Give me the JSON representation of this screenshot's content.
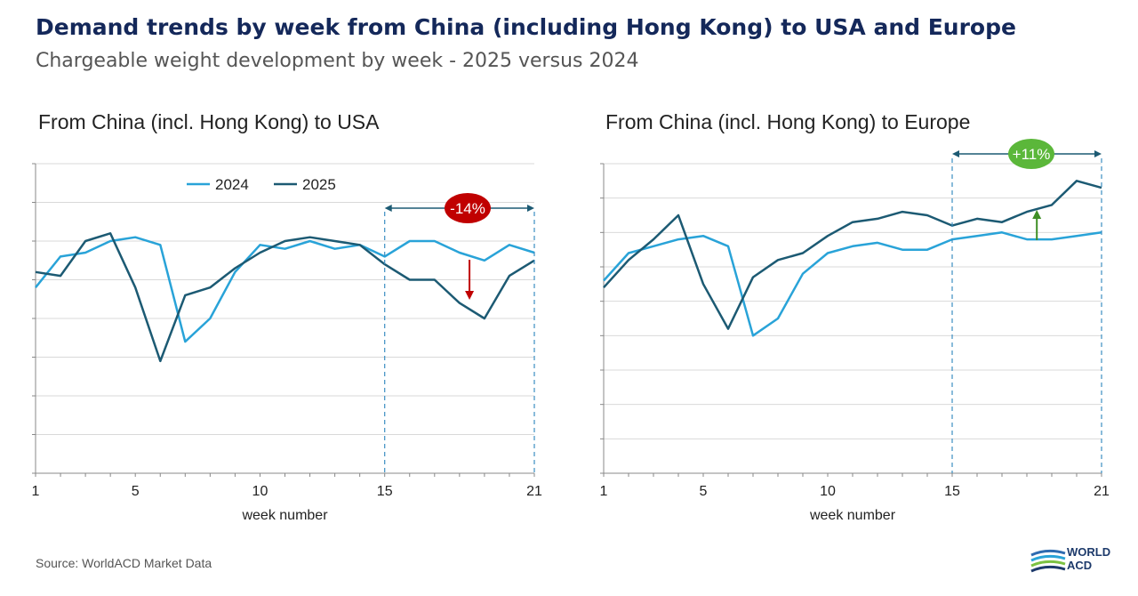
{
  "header": {
    "title": "Demand trends by week from China (including Hong Kong) to USA and Europe",
    "subtitle": "Chargeable weight development by week - 2025 versus 2024"
  },
  "chart_data": [
    {
      "type": "line",
      "title": "From China (incl. Hong Kong) to USA",
      "xlabel": "week number",
      "ylabel": "",
      "xlim": [
        1,
        21
      ],
      "ylim": [
        0,
        8
      ],
      "x_ticks": [
        1,
        5,
        10,
        15,
        21
      ],
      "grid": true,
      "legend": {
        "position": "top-center",
        "entries": [
          "2024",
          "2025"
        ]
      },
      "x": [
        1,
        2,
        3,
        4,
        5,
        6,
        7,
        8,
        9,
        10,
        11,
        12,
        13,
        14,
        15,
        16,
        17,
        18,
        19,
        20,
        21
      ],
      "series": [
        {
          "name": "2024",
          "color": "#29a3d8",
          "values": [
            4.8,
            5.6,
            5.7,
            6.0,
            6.1,
            5.9,
            3.4,
            4.0,
            5.2,
            5.9,
            5.8,
            6.0,
            5.8,
            5.9,
            5.6,
            6.0,
            6.0,
            5.7,
            5.5,
            5.9,
            5.7
          ]
        },
        {
          "name": "2025",
          "color": "#1c5a73",
          "values": [
            5.2,
            5.1,
            6.0,
            6.2,
            4.8,
            2.9,
            4.6,
            4.8,
            5.3,
            5.7,
            6.0,
            6.1,
            6.0,
            5.9,
            5.4,
            5.0,
            5.0,
            4.4,
            4.0,
            5.1,
            5.5
          ]
        }
      ],
      "annotations": [
        {
          "label": "-14%",
          "from_week": 15,
          "to_week": 21,
          "color": "#c00000",
          "direction": "down"
        }
      ]
    },
    {
      "type": "line",
      "title": "From China (incl. Hong Kong) to Europe",
      "xlabel": "week number",
      "ylabel": "",
      "xlim": [
        1,
        21
      ],
      "ylim": [
        0,
        9
      ],
      "x_ticks": [
        1,
        5,
        10,
        15,
        21
      ],
      "grid": true,
      "x": [
        1,
        2,
        3,
        4,
        5,
        6,
        7,
        8,
        9,
        10,
        11,
        12,
        13,
        14,
        15,
        16,
        17,
        18,
        19,
        20,
        21
      ],
      "series": [
        {
          "name": "2024",
          "color": "#29a3d8",
          "values": [
            5.6,
            6.4,
            6.6,
            6.8,
            6.9,
            6.6,
            4.0,
            4.5,
            5.8,
            6.4,
            6.6,
            6.7,
            6.5,
            6.5,
            6.8,
            6.9,
            7.0,
            6.8,
            6.8,
            6.9,
            7.0
          ]
        },
        {
          "name": "2025",
          "color": "#1c5a73",
          "values": [
            5.4,
            6.2,
            6.8,
            7.5,
            5.5,
            4.2,
            5.7,
            6.2,
            6.4,
            6.9,
            7.3,
            7.4,
            7.6,
            7.5,
            7.2,
            7.4,
            7.3,
            7.6,
            7.8,
            8.5,
            8.3
          ]
        }
      ],
      "annotations": [
        {
          "label": "+11%",
          "from_week": 15,
          "to_week": 21,
          "color": "#5bb73a",
          "direction": "up"
        }
      ]
    }
  ],
  "footer": {
    "source": "Source: WorldACD Market Data"
  },
  "logo": {
    "line1": "WORLD",
    "line2": "ACD"
  }
}
